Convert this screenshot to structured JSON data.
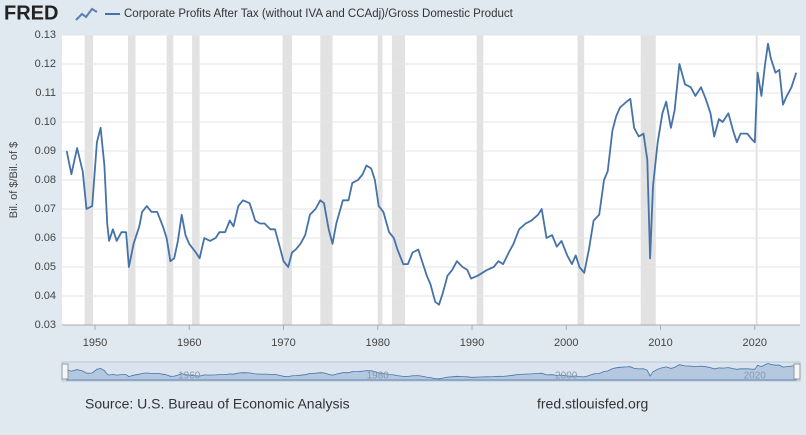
{
  "chart_data": {
    "type": "line",
    "brand": "FRED",
    "ylabel": "Bil. of $/Bil. of $",
    "source": "Source: U.S. Bureau of Economic Analysis",
    "site": "fred.stlouisfed.org",
    "xlim": [
      1946.5,
      2024.8
    ],
    "xticks": [
      1950,
      1960,
      1970,
      1980,
      1990,
      2000,
      2010,
      2020
    ],
    "ylim": [
      0.03,
      0.13
    ],
    "yticks": [
      0.03,
      0.04,
      0.05,
      0.06,
      0.07,
      0.08,
      0.09,
      {
        "value": 0.1,
        "label": "0.10"
      },
      0.11,
      0.12,
      0.13
    ],
    "grid": true,
    "recessions": [
      [
        1948.9,
        1949.8
      ],
      [
        1953.5,
        1954.3
      ],
      [
        1957.6,
        1958.3
      ],
      [
        1960.3,
        1961.1
      ],
      [
        1969.9,
        1970.9
      ],
      [
        1973.9,
        1975.2
      ],
      [
        1980.0,
        1980.5
      ],
      [
        1981.5,
        1982.9
      ],
      [
        1990.5,
        1991.2
      ],
      [
        2001.2,
        2001.9
      ],
      [
        2007.9,
        2009.5
      ],
      [
        2020.1,
        2020.3
      ]
    ],
    "navigator_ticks": [
      1960,
      1980,
      2000,
      2020
    ],
    "x": [
      1947,
      1947.5,
      1948.1,
      1948.7,
      1949.1,
      1949.7,
      1950.2,
      1950.6,
      1951,
      1951.3,
      1951.5,
      1951.9,
      1952.3,
      1952.8,
      1953.3,
      1953.6,
      1954.1,
      1954.7,
      1955,
      1955.5,
      1956,
      1956.6,
      1957.2,
      1957.6,
      1958,
      1958.4,
      1958.8,
      1959.2,
      1959.6,
      1960,
      1960.7,
      1961.1,
      1961.6,
      1962.2,
      1962.8,
      1963.2,
      1963.8,
      1964.3,
      1964.7,
      1965.2,
      1965.7,
      1966.4,
      1967,
      1967.5,
      1968,
      1968.6,
      1969.1,
      1969.6,
      1970,
      1970.5,
      1970.9,
      1971.3,
      1971.8,
      1972.3,
      1972.8,
      1973.4,
      1973.9,
      1974.3,
      1974.8,
      1975.2,
      1975.6,
      1976.3,
      1976.9,
      1977.3,
      1977.9,
      1978.4,
      1978.8,
      1979.3,
      1979.7,
      1980.1,
      1980.6,
      1981.2,
      1981.7,
      1982.1,
      1982.7,
      1983.2,
      1983.7,
      1984.3,
      1984.8,
      1985.2,
      1985.6,
      1986.1,
      1986.5,
      1986.9,
      1987.4,
      1987.9,
      1988.4,
      1989,
      1989.5,
      1989.9,
      1990.6,
      1991.1,
      1991.6,
      1992.3,
      1992.8,
      1993.3,
      1993.9,
      1994.4,
      1995,
      1995.7,
      1996.3,
      1997,
      1997.4,
      1997.9,
      1998.5,
      1999,
      1999.5,
      2000.1,
      2000.6,
      2001,
      2001.4,
      2001.9,
      2002.4,
      2002.9,
      2003.5,
      2004,
      2004.4,
      2004.9,
      2005.3,
      2005.7,
      2006.4,
      2006.8,
      2007.2,
      2007.7,
      2008.2,
      2008.6,
      2008.9,
      2009.2,
      2009.7,
      2010.2,
      2010.6,
      2011.1,
      2011.5,
      2012,
      2012.6,
      2013.2,
      2013.7,
      2014.3,
      2014.8,
      2015.3,
      2015.7,
      2016.2,
      2016.6,
      2017.2,
      2017.7,
      2018.1,
      2018.5,
      2019.2,
      2019.7,
      2020,
      2020.3,
      2020.7,
      2021.1,
      2021.4,
      2021.7,
      2022.2,
      2022.6,
      2023,
      2023.4,
      2023.9,
      2024.4
    ],
    "series": [
      {
        "name": "Corporate Profits After Tax (without IVA and CCAdj)/Gross Domestic Product",
        "color": "#4572a7",
        "values": [
          0.09,
          0.082,
          0.091,
          0.083,
          0.07,
          0.071,
          0.093,
          0.098,
          0.085,
          0.065,
          0.059,
          0.063,
          0.059,
          0.062,
          0.062,
          0.05,
          0.058,
          0.064,
          0.069,
          0.071,
          0.069,
          0.069,
          0.064,
          0.06,
          0.052,
          0.053,
          0.059,
          0.068,
          0.061,
          0.058,
          0.055,
          0.053,
          0.06,
          0.059,
          0.06,
          0.062,
          0.062,
          0.066,
          0.064,
          0.071,
          0.073,
          0.072,
          0.066,
          0.065,
          0.065,
          0.063,
          0.063,
          0.057,
          0.052,
          0.05,
          0.055,
          0.056,
          0.058,
          0.061,
          0.068,
          0.07,
          0.073,
          0.072,
          0.063,
          0.058,
          0.065,
          0.073,
          0.073,
          0.079,
          0.08,
          0.082,
          0.085,
          0.084,
          0.08,
          0.071,
          0.069,
          0.062,
          0.06,
          0.056,
          0.051,
          0.051,
          0.055,
          0.056,
          0.051,
          0.047,
          0.044,
          0.038,
          0.037,
          0.041,
          0.047,
          0.049,
          0.052,
          0.05,
          0.049,
          0.046,
          0.047,
          0.048,
          0.049,
          0.05,
          0.052,
          0.051,
          0.055,
          0.058,
          0.063,
          0.065,
          0.066,
          0.068,
          0.07,
          0.06,
          0.061,
          0.057,
          0.059,
          0.054,
          0.051,
          0.054,
          0.05,
          0.048,
          0.056,
          0.066,
          0.068,
          0.08,
          0.083,
          0.097,
          0.102,
          0.105,
          0.107,
          0.108,
          0.098,
          0.095,
          0.096,
          0.087,
          0.053,
          0.078,
          0.093,
          0.103,
          0.107,
          0.098,
          0.104,
          0.12,
          0.113,
          0.112,
          0.109,
          0.112,
          0.108,
          0.103,
          0.095,
          0.101,
          0.1,
          0.103,
          0.097,
          0.093,
          0.096,
          0.096,
          0.094,
          0.093,
          0.117,
          0.109,
          0.12,
          0.127,
          0.122,
          0.117,
          0.118,
          0.106,
          0.109,
          0.112,
          0.117
        ]
      }
    ]
  }
}
